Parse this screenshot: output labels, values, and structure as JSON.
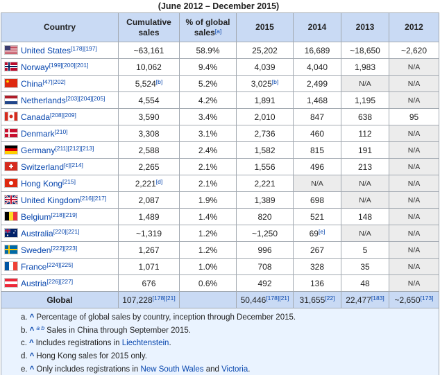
{
  "caption": "(June 2012 – December 2015)",
  "table": {
    "headers": [
      "Country",
      "Cumulative sales",
      {
        "text": "% of global sales",
        "ref": "[a]"
      },
      "2015",
      "2014",
      "2013",
      "2012"
    ],
    "rows": [
      {
        "country": "United States",
        "refs": "[178][197]",
        "cells": [
          "~63,161",
          "58.9%",
          "25,202",
          "16,689",
          "~18,650",
          "~2,620"
        ]
      },
      {
        "country": "Norway",
        "refs": "[199][200][201]",
        "cells": [
          "10,062",
          "9.4%",
          "4,039",
          "4,040",
          "1,983",
          "N/A"
        ]
      },
      {
        "country": "China",
        "refs": "[47][202]",
        "cells": [
          {
            "text": "5,524",
            "ref": "[b]"
          },
          "5.2%",
          {
            "text": "3,025",
            "ref": "[b]"
          },
          "2,499",
          "N/A",
          "N/A"
        ]
      },
      {
        "country": "Netherlands",
        "refs": "[203][204][205]",
        "cells": [
          "4,554",
          "4.2%",
          "1,891",
          "1,468",
          "1,195",
          "N/A"
        ]
      },
      {
        "country": "Canada",
        "refs": "[208][209]",
        "cells": [
          "3,590",
          "3.4%",
          "2,010",
          "847",
          "638",
          "95"
        ]
      },
      {
        "country": "Denmark",
        "refs": "[210]",
        "cells": [
          "3,308",
          "3.1%",
          "2,736",
          "460",
          "112",
          "N/A"
        ]
      },
      {
        "country": "Germany",
        "refs": "[211][212][213]",
        "cells": [
          "2,588",
          "2.4%",
          "1,582",
          "815",
          "191",
          "N/A"
        ]
      },
      {
        "country": "Switzerland",
        "refs": "[c][214]",
        "cells": [
          "2,265",
          "2.1%",
          "1,556",
          "496",
          "213",
          "N/A"
        ]
      },
      {
        "country": "Hong Kong",
        "refs": "[215]",
        "cells": [
          {
            "text": "2,221",
            "ref": "[d]"
          },
          "2.1%",
          "2,221",
          "N/A",
          "N/A",
          "N/A"
        ]
      },
      {
        "country": "United Kingdom",
        "refs": "[216][217]",
        "cells": [
          "2,087",
          "1.9%",
          "1,389",
          "698",
          "N/A",
          "N/A"
        ]
      },
      {
        "country": "Belgium",
        "refs": "[218][219]",
        "cells": [
          "1,489",
          "1.4%",
          "820",
          "521",
          "148",
          "N/A"
        ]
      },
      {
        "country": "Australia",
        "refs": "[220][221]",
        "cells": [
          "~1,319",
          "1.2%",
          "~1,250",
          {
            "text": "69",
            "ref": "[e]"
          },
          "N/A",
          "N/A"
        ]
      },
      {
        "country": "Sweden",
        "refs": "[222][223]",
        "cells": [
          "1,267",
          "1.2%",
          "996",
          "267",
          "5",
          "N/A"
        ]
      },
      {
        "country": "France",
        "refs": "[224][225]",
        "cells": [
          "1,071",
          "1.0%",
          "708",
          "328",
          "35",
          "N/A"
        ]
      },
      {
        "country": "Austria",
        "refs": "[226][227]",
        "cells": [
          "676",
          "0.6%",
          "492",
          "136",
          "48",
          "N/A"
        ]
      }
    ],
    "global": {
      "label": "Global",
      "cells": [
        {
          "text": "107,228",
          "ref": "[178][21]"
        },
        null,
        {
          "text": "50,446",
          "ref": "[178][21]"
        },
        {
          "text": "31,655",
          "ref": "[22]"
        },
        {
          "text": "22,477",
          "ref": "[183]"
        },
        {
          "text": "~2,650",
          "ref": "[173]"
        }
      ]
    }
  },
  "notes": [
    {
      "label": "a.",
      "caret": "^",
      "parts": [
        {
          "text": "Percentage of global sales by country, inception through December 2015."
        }
      ]
    },
    {
      "label": "b.",
      "caret": "^",
      "backrefs": "a b",
      "parts": [
        {
          "text": "Sales in China through September 2015."
        }
      ]
    },
    {
      "label": "c.",
      "caret": "^",
      "parts": [
        {
          "text": "Includes registrations in "
        },
        {
          "text": "Liechtenstein",
          "link": true
        },
        {
          "text": "."
        }
      ]
    },
    {
      "label": "d.",
      "caret": "^",
      "parts": [
        {
          "text": "Hong Kong sales for 2015 only."
        }
      ]
    },
    {
      "label": "e.",
      "caret": "^",
      "parts": [
        {
          "text": "Only includes registrations in "
        },
        {
          "text": "New South Wales",
          "link": true
        },
        {
          "text": " and "
        },
        {
          "text": "Victoria",
          "link": true
        },
        {
          "text": "."
        }
      ]
    }
  ]
}
